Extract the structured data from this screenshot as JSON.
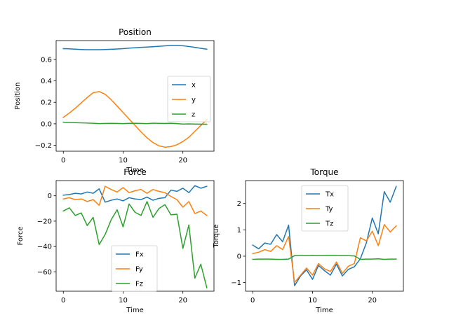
{
  "colors": {
    "blue": "#1f77b4",
    "orange": "#ff7f0e",
    "green": "#2ca02c"
  },
  "chart_data": [
    {
      "type": "line",
      "title": "Position",
      "xlabel": "Time",
      "ylabel": "Position",
      "xlim": [
        -1.2,
        25.2
      ],
      "ylim": [
        -0.255,
        0.775
      ],
      "xticks": [
        0,
        10,
        20
      ],
      "yticks": [
        -0.2,
        0.0,
        0.2,
        0.4,
        0.6
      ],
      "ytick_labels": [
        "−0.2",
        "0.0",
        "0.2",
        "0.4",
        "0.6"
      ],
      "legend": "center-right",
      "grid": false,
      "x": [
        0,
        1,
        2,
        3,
        4,
        5,
        6,
        7,
        8,
        9,
        10,
        11,
        12,
        13,
        14,
        15,
        16,
        17,
        18,
        19,
        20,
        21,
        22,
        23,
        24
      ],
      "series": [
        {
          "name": "x",
          "color": "blue",
          "values": [
            0.7,
            0.698,
            0.695,
            0.692,
            0.69,
            0.69,
            0.69,
            0.692,
            0.694,
            0.697,
            0.7,
            0.705,
            0.708,
            0.712,
            0.715,
            0.718,
            0.722,
            0.726,
            0.73,
            0.73,
            0.727,
            0.72,
            0.712,
            0.703,
            0.695
          ]
        },
        {
          "name": "y",
          "color": "orange",
          "values": [
            0.06,
            0.1,
            0.145,
            0.195,
            0.245,
            0.29,
            0.3,
            0.275,
            0.225,
            0.165,
            0.105,
            0.045,
            -0.015,
            -0.075,
            -0.13,
            -0.175,
            -0.205,
            -0.218,
            -0.212,
            -0.195,
            -0.165,
            -0.125,
            -0.07,
            -0.015,
            0.04
          ]
        },
        {
          "name": "z",
          "color": "green",
          "values": [
            0.015,
            0.013,
            0.011,
            0.009,
            0.007,
            0.005,
            0.002,
            0.003,
            0.004,
            0.003,
            0.002,
            0.004,
            0.005,
            0.003,
            0.002,
            0.006,
            0.004,
            0.003,
            0.005,
            0.002,
            -0.002,
            -0.001,
            -0.002,
            -0.003,
            -0.004
          ]
        }
      ]
    },
    {
      "type": "line",
      "title": "Force",
      "xlabel": "Time",
      "ylabel": "Force",
      "xlim": [
        -1.2,
        25.2
      ],
      "ylim": [
        -75.3,
        12.0
      ],
      "xticks": [
        0,
        10,
        20
      ],
      "yticks": [
        -60,
        -40,
        -20,
        0
      ],
      "ytick_labels": [
        "−60",
        "−40",
        "−20",
        "0"
      ],
      "legend": "lower-center",
      "grid": false,
      "x": [
        0,
        1,
        2,
        3,
        4,
        5,
        6,
        7,
        8,
        9,
        10,
        11,
        12,
        13,
        14,
        15,
        16,
        17,
        18,
        19,
        20,
        21,
        22,
        23,
        24
      ],
      "series": [
        {
          "name": "Fx",
          "color": "blue",
          "values": [
            0.5,
            1.0,
            2.0,
            1.5,
            3.0,
            2.0,
            5.5,
            -5.0,
            -3.5,
            -2.5,
            -4.0,
            -1.5,
            -2.5,
            -3.0,
            -1.0,
            -3.5,
            -2.0,
            -1.5,
            4.5,
            3.5,
            6.0,
            2.5,
            8.0,
            6.0,
            7.5
          ]
        },
        {
          "name": "Fy",
          "color": "orange",
          "values": [
            -2.5,
            -1.5,
            -3.0,
            -2.5,
            -4.5,
            -3.0,
            -7.5,
            7.5,
            5.0,
            3.0,
            6.5,
            2.5,
            4.0,
            5.0,
            2.0,
            5.0,
            3.5,
            2.5,
            -0.5,
            -3.0,
            -9.0,
            -4.5,
            -14.0,
            -12.0,
            -15.5
          ]
        },
        {
          "name": "Fz",
          "color": "green",
          "values": [
            -12.0,
            -9.5,
            -15.5,
            -13.5,
            -23.5,
            -17.0,
            -38.5,
            -30.5,
            -19.0,
            -11.0,
            -24.5,
            -6.5,
            -13.0,
            -15.5,
            -4.5,
            -17.0,
            -10.0,
            -7.0,
            -15.0,
            -14.5,
            -41.5,
            -23.0,
            -65.0,
            -54.0,
            -72.5
          ]
        }
      ]
    },
    {
      "type": "line",
      "title": "Torque",
      "xlabel": "Time",
      "ylabel": "Torque",
      "xlim": [
        -1.2,
        25.2
      ],
      "ylim": [
        -1.33,
        2.87
      ],
      "xticks": [
        0,
        10,
        20
      ],
      "yticks": [
        -1,
        0,
        1,
        2
      ],
      "ytick_labels": [
        "−1",
        "0",
        "1",
        "2"
      ],
      "legend": "upper-center",
      "grid": false,
      "x": [
        0,
        1,
        2,
        3,
        4,
        5,
        6,
        7,
        8,
        9,
        10,
        11,
        12,
        13,
        14,
        15,
        16,
        17,
        18,
        19,
        20,
        21,
        22,
        23,
        24
      ],
      "series": [
        {
          "name": "Tx",
          "color": "blue",
          "values": [
            0.42,
            0.28,
            0.5,
            0.45,
            0.82,
            0.55,
            1.18,
            -1.12,
            -0.75,
            -0.52,
            -0.88,
            -0.35,
            -0.55,
            -0.72,
            -0.3,
            -0.75,
            -0.5,
            -0.4,
            -0.1,
            0.5,
            1.45,
            0.85,
            2.45,
            2.05,
            2.65
          ]
        },
        {
          "name": "Ty",
          "color": "orange",
          "values": [
            0.1,
            0.15,
            0.25,
            0.18,
            0.4,
            0.25,
            0.75,
            -1.0,
            -0.72,
            -0.45,
            -0.72,
            -0.28,
            -0.48,
            -0.58,
            -0.22,
            -0.65,
            -0.38,
            -0.28,
            0.7,
            0.58,
            0.95,
            0.4,
            1.2,
            0.92,
            1.15
          ]
        },
        {
          "name": "Tz",
          "color": "green",
          "values": [
            -0.12,
            -0.11,
            -0.11,
            -0.11,
            -0.12,
            -0.12,
            -0.11,
            0.02,
            0.02,
            0.02,
            0.03,
            0.02,
            0.03,
            0.03,
            0.03,
            0.02,
            0.02,
            0.01,
            -0.12,
            -0.11,
            -0.11,
            -0.1,
            -0.12,
            -0.11,
            -0.11
          ]
        }
      ]
    }
  ]
}
